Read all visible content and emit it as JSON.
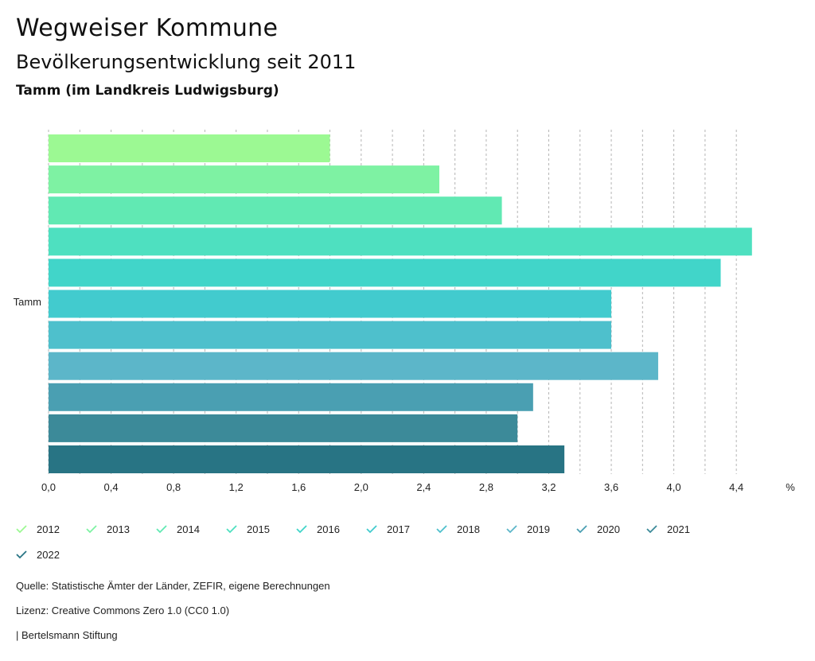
{
  "header": {
    "title": "Wegweiser Kommune",
    "subtitle": "Bevölkerungsentwicklung seit 2011",
    "region": "Tamm (im Landkreis Ludwigsburg)"
  },
  "chart_data": {
    "type": "bar",
    "orientation": "horizontal",
    "categories": [
      "Tamm"
    ],
    "series": [
      {
        "name": "2012",
        "values": [
          1.8
        ],
        "color": "#9cf993"
      },
      {
        "name": "2013",
        "values": [
          2.5
        ],
        "color": "#7ef2a3"
      },
      {
        "name": "2014",
        "values": [
          2.9
        ],
        "color": "#61e9b3"
      },
      {
        "name": "2015",
        "values": [
          4.5
        ],
        "color": "#4ee0c0"
      },
      {
        "name": "2016",
        "values": [
          4.3
        ],
        "color": "#41d5c9"
      },
      {
        "name": "2017",
        "values": [
          3.6
        ],
        "color": "#42cbce"
      },
      {
        "name": "2018",
        "values": [
          3.6
        ],
        "color": "#4ec0cc"
      },
      {
        "name": "2019",
        "values": [
          3.9
        ],
        "color": "#5cb6c9"
      },
      {
        "name": "2020",
        "values": [
          3.1
        ],
        "color": "#4a9fb2"
      },
      {
        "name": "2021",
        "values": [
          3.0
        ],
        "color": "#3c8a99"
      },
      {
        "name": "2022",
        "values": [
          3.3
        ],
        "color": "#287484"
      }
    ],
    "xlim": [
      0,
      4.6
    ],
    "x_ticks": [
      "0,0",
      "0,4",
      "0,8",
      "1,2",
      "1,6",
      "2,0",
      "2,4",
      "2,8",
      "3,2",
      "3,6",
      "4,0",
      "4,4"
    ],
    "x_tick_values": [
      0,
      0.4,
      0.8,
      1.2,
      1.6,
      2.0,
      2.4,
      2.8,
      3.2,
      3.6,
      4.0,
      4.4
    ],
    "grid_step": 0.2,
    "xlabel": "%",
    "grid": true,
    "legend_position": "bottom"
  },
  "footer": {
    "source": "Quelle: Statistische Ämter der Länder, ZEFIR, eigene Berechnungen",
    "license": "Lizenz: Creative Commons Zero 1.0 (CC0 1.0)",
    "publisher": "| Bertelsmann Stiftung"
  }
}
